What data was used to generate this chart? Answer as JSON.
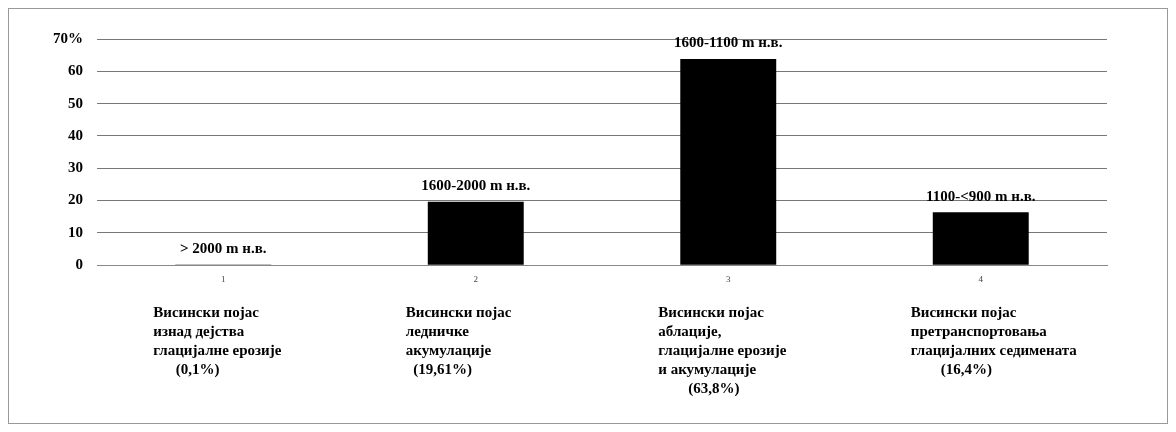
{
  "chart_data": {
    "type": "bar",
    "categories": [
      "1",
      "2",
      "3",
      "4"
    ],
    "values": [
      0.1,
      19.61,
      63.8,
      16.4
    ],
    "color": "#000000",
    "value_labels": [
      "> 2000 m н.в.",
      "1600-2000 m н.в.",
      "1600-1100 m н.в.",
      "1100-<900 m н.в."
    ],
    "ylim": [
      0,
      70
    ],
    "yticks": [
      0,
      10,
      20,
      30,
      40,
      50,
      60,
      {
        "value": 70,
        "label": "70%"
      }
    ],
    "grid": "y",
    "legend": false,
    "annotations": [
      "Висински појас\nизнад дејства\nглацијалне ерозије\n      (0,1%)",
      "Висински појас\nледничке\nакумулације\n  (19,61%)",
      "Висински појас\nаблације,\nглацијалне ерозије\nи акумулације\n        (63,8%)",
      "Висински појас\nпретранспортовања\nглацијалних седимената\n        (16,4%)"
    ]
  }
}
